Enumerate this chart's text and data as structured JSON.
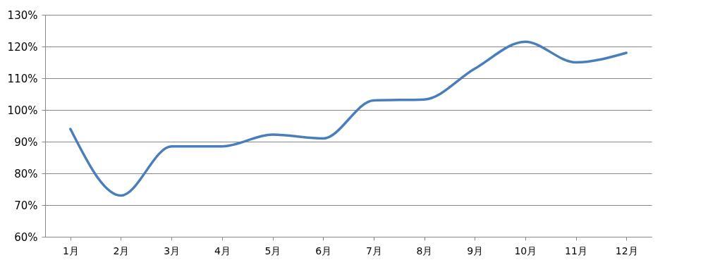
{
  "chart_data": {
    "type": "line",
    "categories": [
      "1月",
      "2月",
      "3月",
      "4月",
      "5月",
      "6月",
      "7月",
      "8月",
      "9月",
      "10月",
      "11月",
      "12月"
    ],
    "series": [
      {
        "color": "#4a7ebb",
        "values": [
          94,
          73,
          88.5,
          88.5,
          92.2,
          91,
          103,
          103.3,
          113,
          121.5,
          115,
          118
        ]
      }
    ],
    "ylim": [
      60,
      130
    ],
    "yticks": [
      {
        "value": 60,
        "label": "60%"
      },
      {
        "value": 70,
        "label": "70%"
      },
      {
        "value": 80,
        "label": "80%"
      },
      {
        "value": 90,
        "label": "90%"
      },
      {
        "value": 100,
        "label": "100%"
      },
      {
        "value": 110,
        "label": "110%"
      },
      {
        "value": 120,
        "label": "120%"
      },
      {
        "value": 130,
        "label": "130%"
      }
    ],
    "grid": "y",
    "legend": false,
    "marker": "none",
    "line_style": "solid"
  }
}
